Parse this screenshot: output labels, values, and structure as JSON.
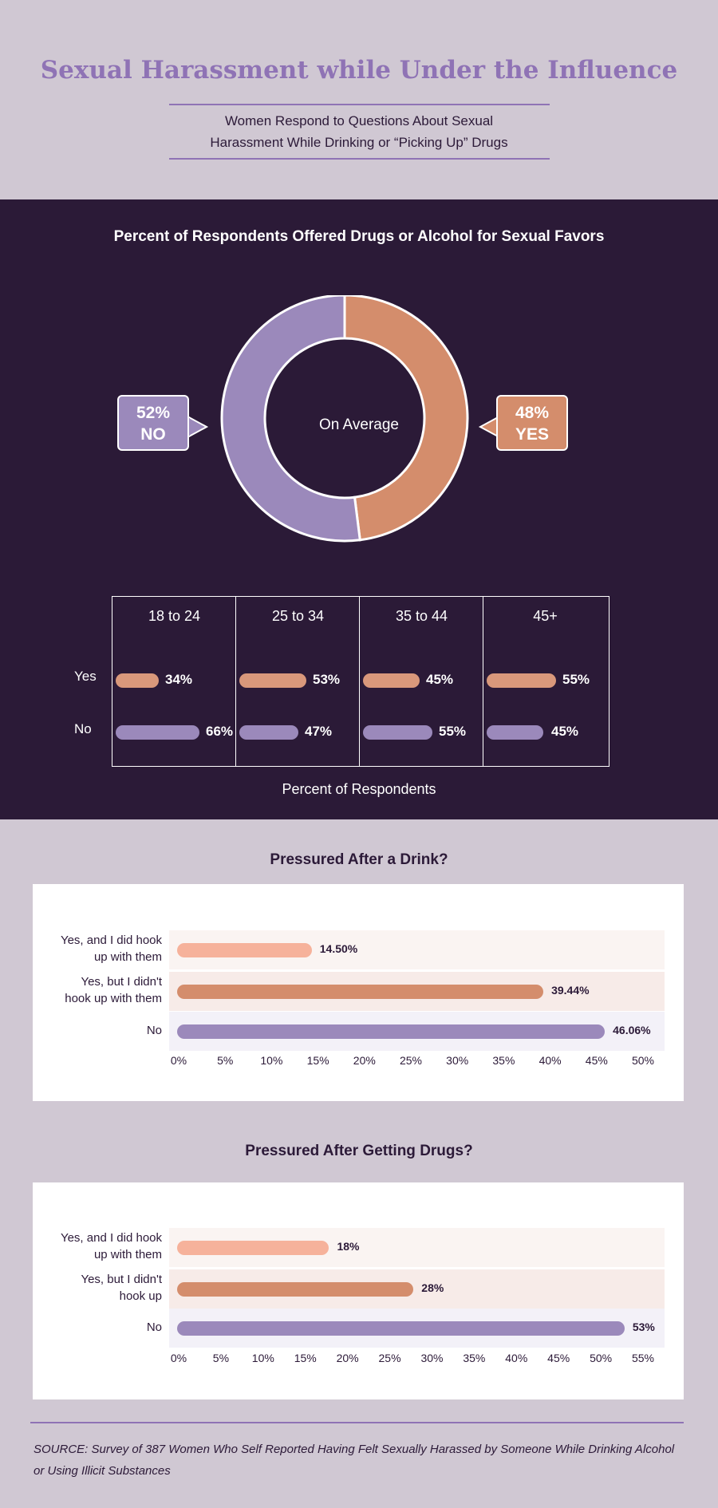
{
  "header": {
    "title": "Sexual Harassment while Under the Influence",
    "subtitle_line1": "Women Respond to Questions About Sexual",
    "subtitle_line2": "Harassment While Drinking or “Picking Up” Drugs"
  },
  "offered": {
    "title": "Percent of Respondents Offered Drugs or Alcohol for Sexual Favors",
    "center_label": "On Average",
    "no_pct": "52%",
    "no_label": "NO",
    "yes_pct": "48%",
    "yes_label": "YES",
    "row_yes": "Yes",
    "row_no": "No",
    "axis_caption": "Percent of Respondents",
    "groups": [
      {
        "label": "18 to 24",
        "yes": "34%",
        "no": "66%"
      },
      {
        "label": "25 to 34",
        "yes": "53%",
        "no": "47%"
      },
      {
        "label": "35 to 44",
        "yes": "45%",
        "no": "55%"
      },
      {
        "label": "45+",
        "yes": "55%",
        "no": "45%"
      }
    ]
  },
  "drink": {
    "title": "Pressured After a Drink?",
    "rows": [
      {
        "label1": "Yes, and I did hook",
        "label2": "up with them",
        "value": "14.50%"
      },
      {
        "label1": "Yes, but I didn't",
        "label2": "hook up with them",
        "value": "39.44%"
      },
      {
        "label1": "No",
        "label2": "",
        "value": "46.06%"
      }
    ],
    "ticks": [
      "0%",
      "5%",
      "10%",
      "15%",
      "20%",
      "25%",
      "30%",
      "35%",
      "40%",
      "45%",
      "50%"
    ]
  },
  "drugs": {
    "title": "Pressured After Getting Drugs?",
    "rows": [
      {
        "label1": "Yes, and I did hook",
        "label2": "up with them",
        "value": "18%"
      },
      {
        "label1": "Yes, but I didn't",
        "label2": "hook up",
        "value": "28%"
      },
      {
        "label1": "No",
        "label2": "",
        "value": "53%"
      }
    ],
    "ticks": [
      "0%",
      "5%",
      "10%",
      "15%",
      "20%",
      "25%",
      "30%",
      "35%",
      "40%",
      "45%",
      "50%",
      "55%"
    ]
  },
  "source": "SOURCE: Survey of 387 Women Who Self Reported Having Felt Sexually Harassed by Someone While Drinking Alcohol or Using Illicit Substances",
  "colors": {
    "background": "#d0c8d3",
    "dark_panel": "#2b1a37",
    "purple": "#9b89bb",
    "orange": "#d48d6c",
    "peach": "#f6b29b",
    "title_purple": "#8f73b5"
  },
  "chart_data": [
    {
      "type": "pie",
      "title": "Percent of Respondents Offered Drugs or Alcohol for Sexual Favors",
      "categories": [
        "YES",
        "NO"
      ],
      "values": [
        48,
        52
      ]
    },
    {
      "type": "bar",
      "categories": [
        "18 to 24",
        "25 to 34",
        "35 to 44",
        "45+"
      ],
      "series": [
        {
          "name": "Yes",
          "values": [
            34,
            53,
            45,
            55
          ]
        },
        {
          "name": "No",
          "values": [
            66,
            47,
            55,
            45
          ]
        }
      ],
      "xlabel": "Percent of Respondents"
    },
    {
      "type": "bar",
      "title": "Pressured After a Drink?",
      "categories": [
        "Yes, and I did hook up with them",
        "Yes, but I didn't hook up with them",
        "No"
      ],
      "values": [
        14.5,
        39.44,
        46.06
      ],
      "xlim": [
        0,
        50
      ]
    },
    {
      "type": "bar",
      "title": "Pressured After Getting Drugs?",
      "categories": [
        "Yes, and I did hook up with them",
        "Yes, but I didn't hook up",
        "No"
      ],
      "values": [
        18,
        28,
        53
      ],
      "xlim": [
        0,
        55
      ]
    }
  ]
}
